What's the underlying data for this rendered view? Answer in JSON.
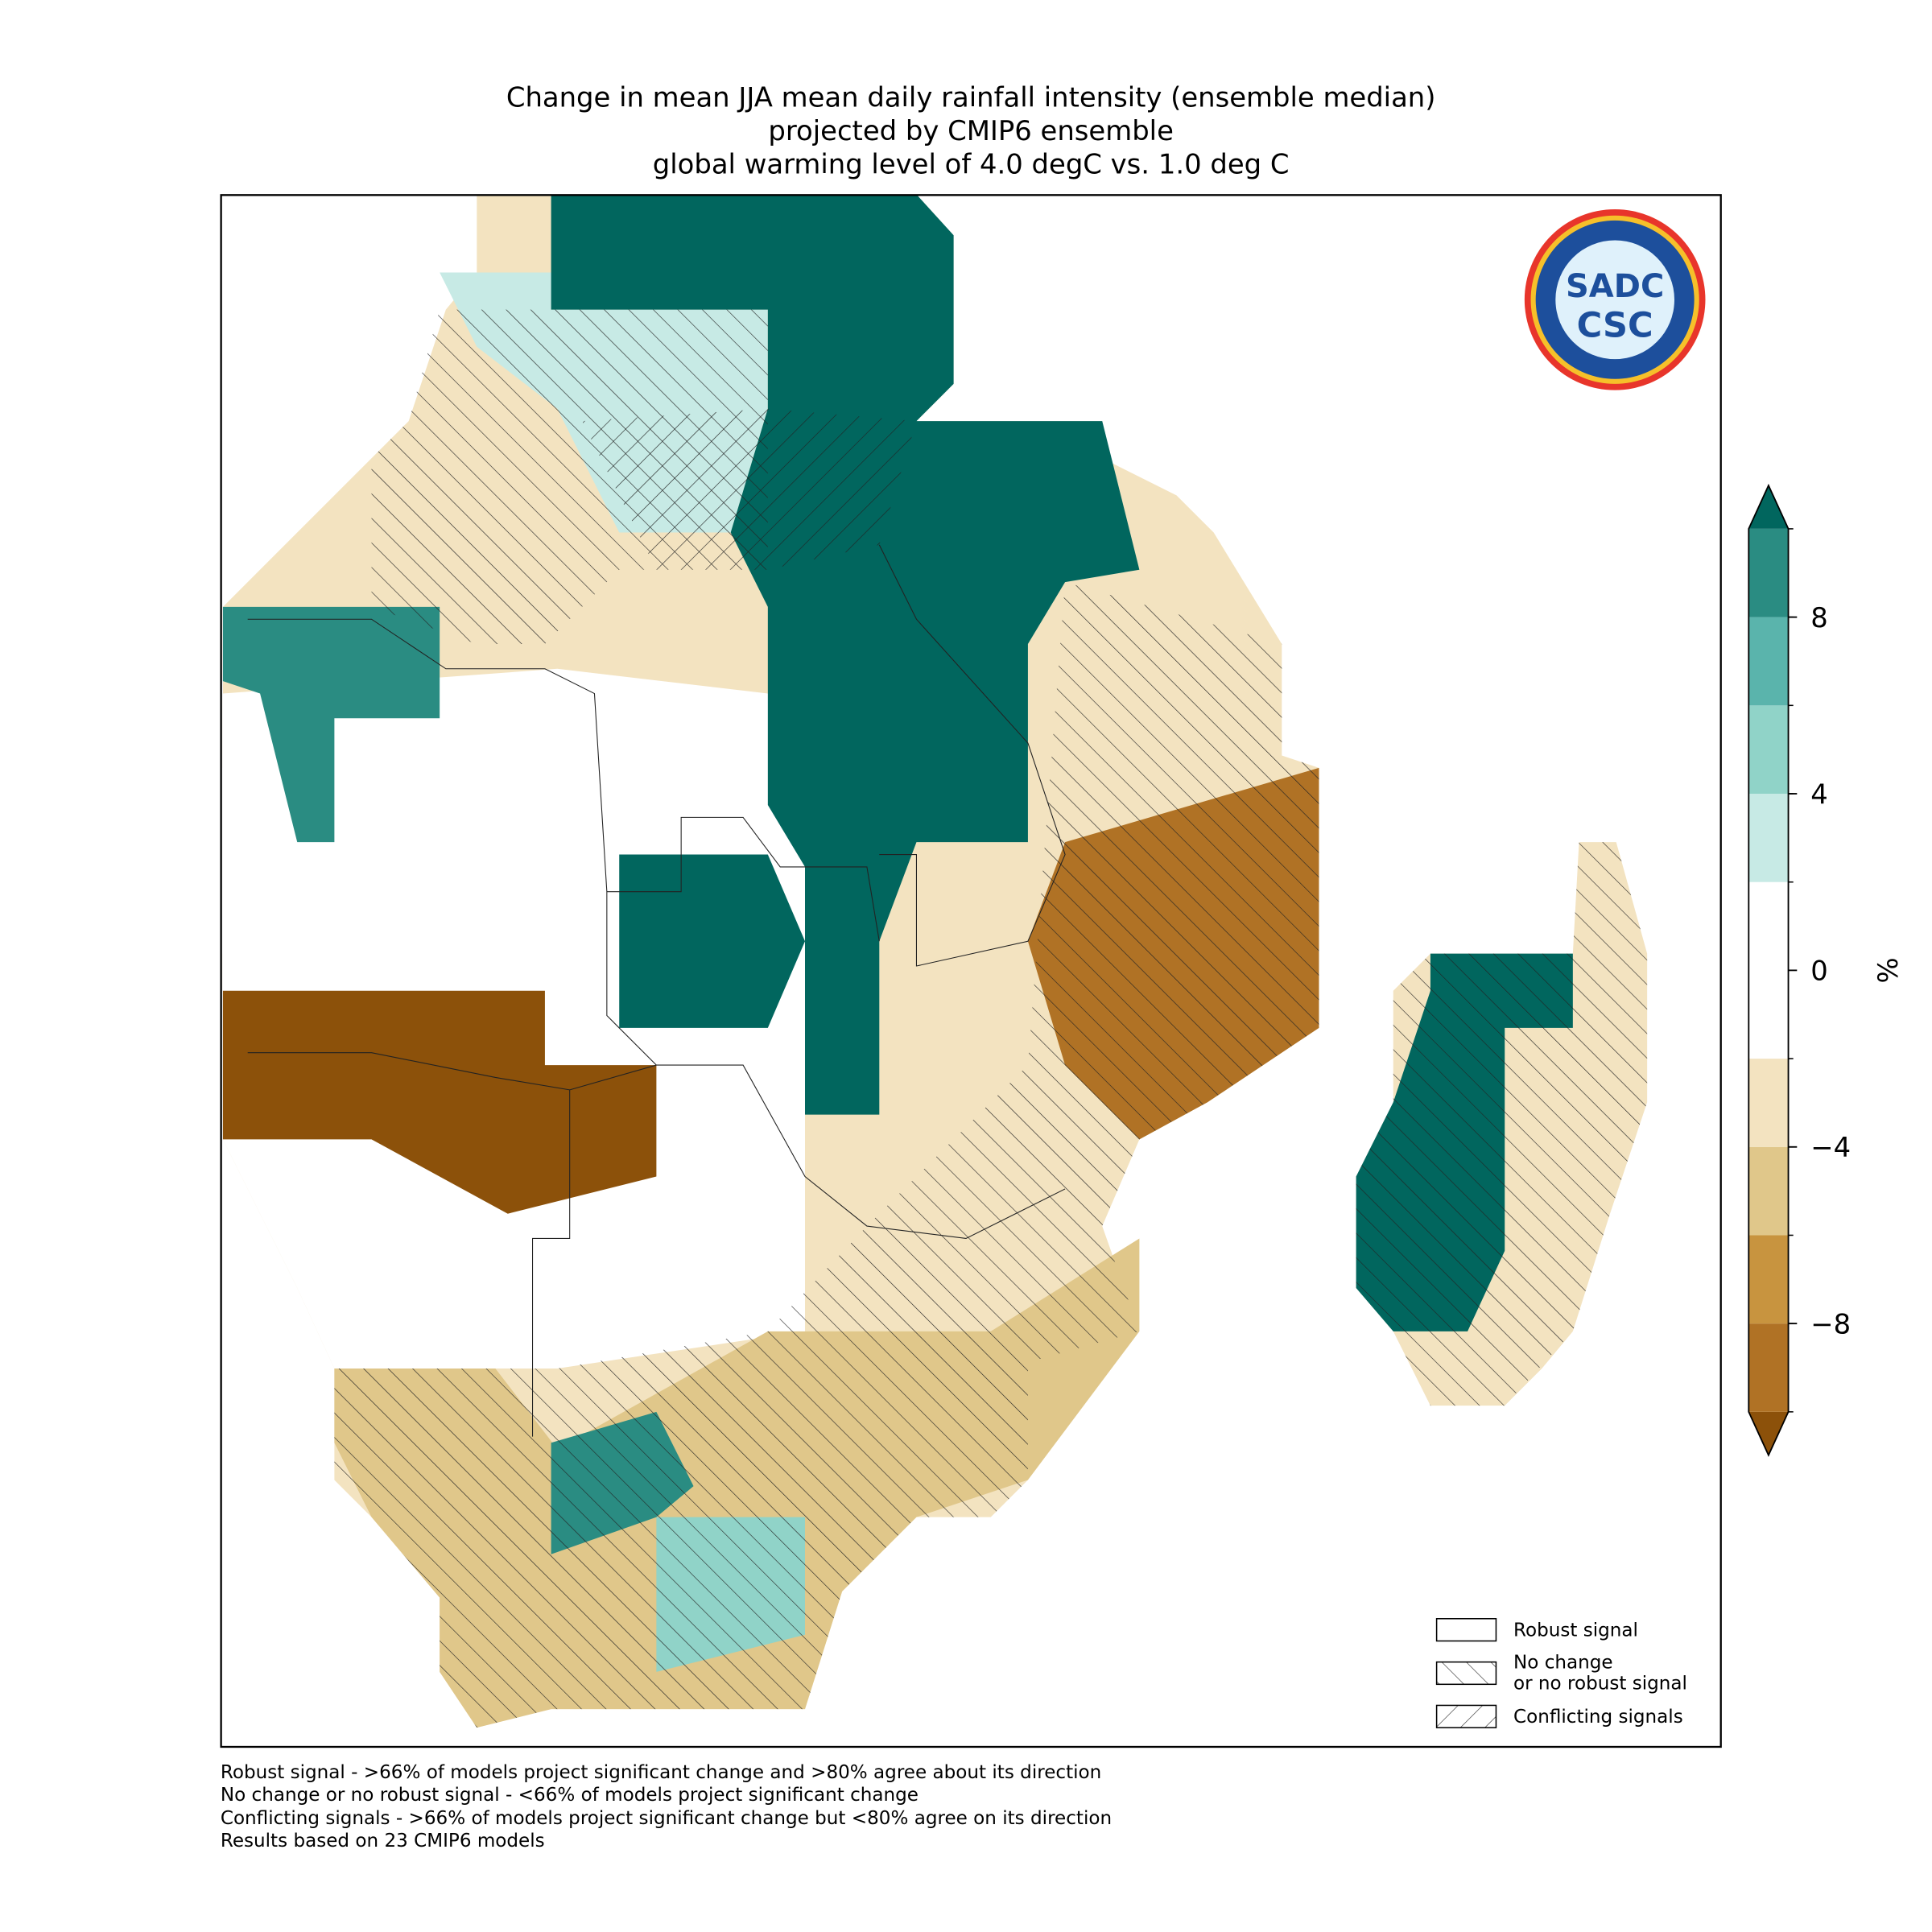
{
  "title": [
    "Change in mean JJA mean daily rainfall intensity (ensemble median)",
    "projected by CMIP6 ensemble",
    "global warming level of 4.0 degC vs. 1.0 deg C"
  ],
  "logo": {
    "top": "SADC",
    "bottom": "CSC"
  },
  "colorbar": {
    "levels": [
      -10,
      -8,
      -6,
      -4,
      -2,
      2,
      4,
      6,
      8,
      10
    ],
    "colors": [
      "#b07225",
      "#c8943f",
      "#e0c78a",
      "#f3e3c0",
      "#ffffff",
      "#c7eae5",
      "#90d3c8",
      "#5ab4ac",
      "#2a8c82"
    ],
    "under_color": "#8c510a",
    "over_color": "#01665e",
    "ticks": [
      {
        "value": -8,
        "label": "−8"
      },
      {
        "value": -4,
        "label": "−4"
      },
      0,
      4,
      8
    ],
    "label": "%"
  },
  "legend": [
    "Robust signal",
    "No change\nor no robust signal",
    "Conflicting signals"
  ],
  "footnotes": [
    "Robust signal - >66% of models project significant change and >80% agree about its direction",
    "No change or no robust signal - <66% of models project significant change",
    "Conflicting signals - >66% of models project significant change but <80% agree on its direction",
    "Results based on 23 CMIP6 models"
  ]
}
